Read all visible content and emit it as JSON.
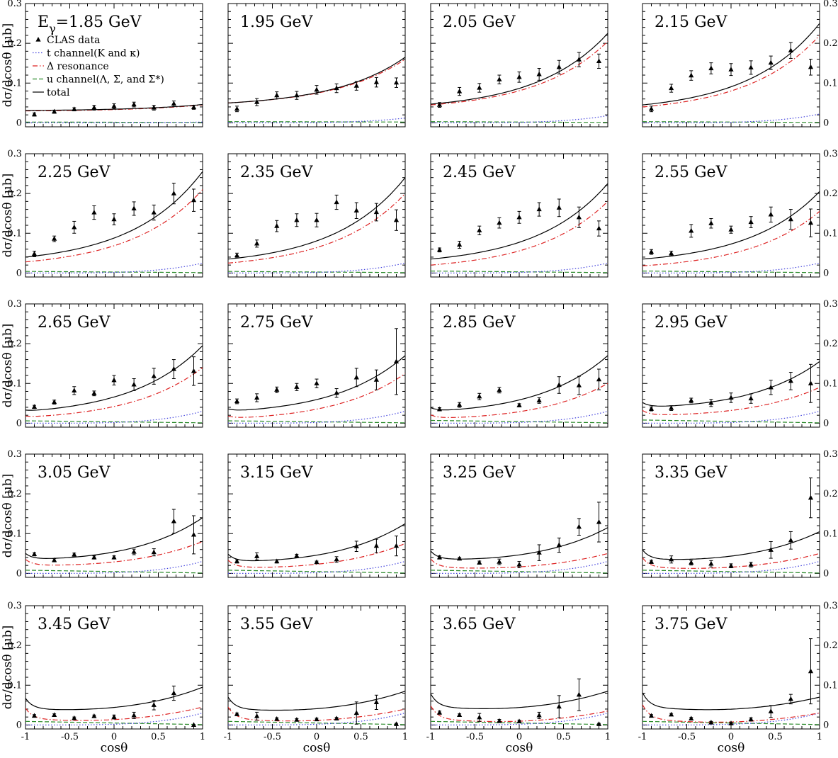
{
  "chart_data": {
    "type": "scatter",
    "grid": false,
    "xlabel": "cosθ",
    "ylabel": "dσ/dcosθ [μb]",
    "xlim": [
      -1,
      1
    ],
    "ylim": [
      -0.01,
      0.3
    ],
    "x_ticks": [
      "-1",
      "-0.5",
      "0",
      "0.5",
      "1"
    ],
    "y_ticks": [
      "0",
      "0.1",
      "0.2",
      "0.3"
    ],
    "legend": {
      "placement": "top-left panel",
      "entries": [
        {
          "key": "data",
          "label": "CLAS data",
          "marker": "triangle",
          "color": "#000000"
        },
        {
          "key": "t_channel",
          "label": "t channel(K and κ)",
          "style": "dotted",
          "color": "#4444dd"
        },
        {
          "key": "delta",
          "label": "Δ resonance",
          "style": "dash-dot",
          "color": "#dd2222"
        },
        {
          "key": "u_channel",
          "label": "u channel(Λ, Σ, and Σ*)",
          "style": "dashed",
          "color": "#2a8a2a"
        },
        {
          "key": "total",
          "label": "total",
          "style": "solid",
          "color": "#000000"
        }
      ]
    },
    "data_x": [
      -0.9,
      -0.675,
      -0.45,
      -0.225,
      0.0,
      0.225,
      0.45,
      0.675,
      0.9
    ],
    "panels": [
      {
        "label_prefix": "E",
        "label_sub": "γ",
        "label": "=1.85 GeV",
        "data_y": [
          0.021,
          0.028,
          0.034,
          0.038,
          0.042,
          0.046,
          0.038,
          0.048,
          0.039
        ],
        "data_err": [
          0.004,
          0.004,
          0.004,
          0.006,
          0.006,
          0.006,
          0.006,
          0.007,
          0.005
        ],
        "curves": {
          "total": [
            0.031,
            0.046
          ],
          "delta": [
            0.03,
            0.045
          ],
          "t": [
            0.0,
            0.002
          ],
          "u": [
            0.002,
            0.001
          ]
        }
      },
      {
        "label": "1.95 GeV",
        "data_y": [
          0.035,
          0.052,
          0.069,
          0.069,
          0.083,
          0.087,
          0.093,
          0.102,
          0.101
        ],
        "data_err": [
          0.007,
          0.009,
          0.009,
          0.01,
          0.011,
          0.011,
          0.011,
          0.012,
          0.012
        ],
        "curves": {
          "total": [
            0.05,
            0.165
          ],
          "delta": [
            0.05,
            0.16
          ],
          "t": [
            0.0,
            0.012
          ],
          "u": [
            0.003,
            0.002
          ]
        }
      },
      {
        "label": "2.05 GeV",
        "data_y": [
          0.045,
          0.079,
          0.088,
          0.109,
          0.115,
          0.122,
          0.14,
          0.159,
          0.155
        ],
        "data_err": [
          0.006,
          0.01,
          0.011,
          0.011,
          0.013,
          0.015,
          0.017,
          0.018,
          0.018
        ],
        "curves": {
          "total": [
            0.047,
            0.225
          ],
          "delta": [
            0.045,
            0.205
          ],
          "t": [
            0.0,
            0.018
          ],
          "u": [
            0.003,
            0.001
          ]
        }
      },
      {
        "label": "2.15 GeV",
        "data_y": [
          0.035,
          0.087,
          0.119,
          0.137,
          0.134,
          0.139,
          0.151,
          0.182,
          0.14
        ],
        "data_err": [
          0.007,
          0.01,
          0.012,
          0.014,
          0.015,
          0.017,
          0.017,
          0.02,
          0.02
        ],
        "curves": {
          "total": [
            0.045,
            0.25
          ],
          "delta": [
            0.04,
            0.22
          ],
          "t": [
            0.0,
            0.022
          ],
          "u": [
            0.003,
            0.001
          ]
        }
      },
      {
        "label": "2.25 GeV",
        "data_y": [
          0.048,
          0.086,
          0.115,
          0.152,
          0.135,
          0.162,
          0.152,
          0.2,
          0.183
        ],
        "data_err": [
          0.007,
          0.007,
          0.015,
          0.017,
          0.014,
          0.017,
          0.019,
          0.026,
          0.028
        ],
        "curves": {
          "total": [
            0.04,
            0.255
          ],
          "delta": [
            0.028,
            0.21
          ],
          "t": [
            0.0,
            0.025
          ],
          "u": [
            0.004,
            0.001
          ]
        }
      },
      {
        "label": "2.35 GeV",
        "data_y": [
          0.044,
          0.074,
          0.118,
          0.133,
          0.133,
          0.178,
          0.157,
          0.153,
          0.133
        ],
        "data_err": [
          0.006,
          0.009,
          0.014,
          0.016,
          0.017,
          0.018,
          0.02,
          0.022,
          0.026
        ],
        "curves": {
          "total": [
            0.035,
            0.24
          ],
          "delta": [
            0.025,
            0.2
          ],
          "t": [
            0.0,
            0.025
          ],
          "u": [
            0.004,
            0.001
          ]
        }
      },
      {
        "label": "2.45 GeV",
        "data_y": [
          0.058,
          0.071,
          0.107,
          0.126,
          0.14,
          0.16,
          0.164,
          0.14,
          0.112
        ],
        "data_err": [
          0.005,
          0.009,
          0.011,
          0.013,
          0.015,
          0.017,
          0.022,
          0.026,
          0.019
        ],
        "curves": {
          "total": [
            0.035,
            0.225
          ],
          "delta": [
            0.02,
            0.18
          ],
          "t": [
            0.0,
            0.025
          ],
          "u": [
            0.005,
            0.001
          ]
        }
      },
      {
        "label": "2.55 GeV",
        "data_y": [
          0.053,
          0.049,
          0.106,
          0.125,
          0.109,
          0.128,
          0.147,
          0.135,
          0.126
        ],
        "data_err": [
          0.006,
          0.006,
          0.016,
          0.012,
          0.009,
          0.014,
          0.019,
          0.025,
          0.035
        ],
        "curves": {
          "total": [
            0.035,
            0.205
          ],
          "delta": [
            0.018,
            0.155
          ],
          "t": [
            0.0,
            0.025
          ],
          "u": [
            0.005,
            0.001
          ]
        }
      },
      {
        "label": "2.65 GeV",
        "data_y": [
          0.041,
          0.053,
          0.082,
          0.075,
          0.108,
          0.097,
          0.118,
          0.136,
          0.131
        ],
        "data_err": [
          0.004,
          0.005,
          0.01,
          0.006,
          0.012,
          0.015,
          0.02,
          0.024,
          0.036
        ],
        "curves": {
          "total": [
            0.03,
            0.195
          ],
          "delta": [
            0.015,
            0.14
          ],
          "t": [
            0.0,
            0.03
          ],
          "u": [
            0.006,
            0.001
          ]
        }
      },
      {
        "label": "2.75 GeV",
        "data_y": [
          0.055,
          0.064,
          0.084,
          0.091,
          0.1,
          0.076,
          0.115,
          0.109,
          0.155
        ],
        "data_err": [
          0.006,
          0.01,
          0.007,
          0.009,
          0.011,
          0.011,
          0.023,
          0.025,
          0.083
        ],
        "curves": {
          "total": [
            0.03,
            0.17
          ],
          "delta": [
            0.012,
            0.125
          ],
          "t": [
            0.0,
            0.03
          ],
          "u": [
            0.006,
            0.001
          ]
        }
      },
      {
        "label": "2.85 GeV",
        "data_y": [
          0.035,
          0.046,
          0.067,
          0.083,
          0.045,
          0.057,
          0.096,
          0.095,
          0.11
        ],
        "data_err": [
          0.004,
          0.006,
          0.008,
          0.007,
          0.004,
          0.007,
          0.021,
          0.023,
          0.026
        ],
        "curves": {
          "total": [
            0.03,
            0.17
          ],
          "delta": [
            0.012,
            0.1
          ],
          "t": [
            0.0,
            0.03
          ],
          "u": [
            0.007,
            0.001
          ]
        }
      },
      {
        "label": "2.95 GeV",
        "data_y": [
          0.036,
          0.038,
          0.057,
          0.051,
          0.064,
          0.062,
          0.09,
          0.106,
          0.1
        ],
        "data_err": [
          0.005,
          0.006,
          0.006,
          0.009,
          0.012,
          0.012,
          0.018,
          0.022,
          0.048
        ],
        "curves": {
          "total": [
            0.04,
            0.155
          ],
          "delta": [
            0.02,
            0.09
          ],
          "t": [
            0.0,
            0.03
          ],
          "u": [
            0.008,
            0.001
          ]
        }
      },
      {
        "label": "3.05 GeV",
        "data_y": [
          0.048,
          0.033,
          0.047,
          0.04,
          0.04,
          0.054,
          0.053,
          0.131,
          0.097
        ],
        "data_err": [
          0.004,
          0.004,
          0.004,
          0.004,
          0.004,
          0.007,
          0.009,
          0.03,
          0.048
        ],
        "curves": {
          "total": [
            0.035,
            0.14
          ],
          "delta": [
            0.02,
            0.08
          ],
          "t": [
            0.0,
            0.03
          ],
          "u": [
            0.008,
            0.001
          ]
        }
      },
      {
        "label": "3.15 GeV",
        "data_y": [
          0.03,
          0.043,
          0.03,
          0.044,
          0.028,
          0.035,
          0.068,
          0.069,
          0.069
        ],
        "data_err": [
          0.004,
          0.009,
          0.004,
          0.004,
          0.003,
          0.007,
          0.013,
          0.017,
          0.025
        ],
        "curves": {
          "total": [
            0.03,
            0.125
          ],
          "delta": [
            0.015,
            0.075
          ],
          "t": [
            0.0,
            0.03
          ],
          "u": [
            0.008,
            0.001
          ]
        }
      },
      {
        "label": "3.25 GeV",
        "data_y": [
          0.04,
          0.037,
          0.027,
          0.029,
          0.022,
          0.052,
          0.071,
          0.117,
          0.129
        ],
        "data_err": [
          0.004,
          0.003,
          0.004,
          0.007,
          0.008,
          0.02,
          0.018,
          0.021,
          0.05
        ],
        "curves": {
          "total": [
            0.035,
            0.115
          ],
          "delta": [
            0.015,
            0.05
          ],
          "t": [
            0.0,
            0.03
          ],
          "u": [
            0.008,
            0.001
          ]
        }
      },
      {
        "label": "3.35 GeV",
        "data_y": [
          0.029,
          0.035,
          0.027,
          0.024,
          0.019,
          0.022,
          0.059,
          0.083,
          0.19
        ],
        "data_err": [
          0.004,
          0.009,
          0.006,
          0.008,
          0.005,
          0.006,
          0.021,
          0.022,
          0.05
        ],
        "curves": {
          "total": [
            0.035,
            0.105
          ],
          "delta": [
            0.015,
            0.05
          ],
          "t": [
            0.0,
            0.03
          ],
          "u": [
            0.008,
            0.001
          ]
        }
      },
      {
        "label": "3.45 GeV",
        "data_y": [
          0.023,
          0.025,
          0.017,
          0.022,
          0.02,
          0.024,
          0.05,
          0.08,
          0.0
        ],
        "data_err": [
          0.003,
          0.003,
          0.003,
          0.003,
          0.005,
          0.008,
          0.012,
          0.018,
          0.0
        ],
        "curves": {
          "total": [
            0.04,
            0.095
          ],
          "delta": [
            0.015,
            0.045
          ],
          "t": [
            0.0,
            0.03
          ],
          "u": [
            0.009,
            0.001
          ]
        }
      },
      {
        "label": "3.55 GeV",
        "data_y": [
          0.027,
          0.022,
          0.015,
          0.013,
          0.014,
          0.016,
          0.03,
          0.057,
          0.002
        ],
        "data_err": [
          0.003,
          0.01,
          0.003,
          0.003,
          0.003,
          0.003,
          0.028,
          0.018,
          0.002
        ],
        "curves": {
          "total": [
            0.04,
            0.085
          ],
          "delta": [
            0.015,
            0.04
          ],
          "t": [
            0.0,
            0.03
          ],
          "u": [
            0.009,
            0.001
          ]
        }
      },
      {
        "label": "3.65 GeV",
        "data_y": [
          0.031,
          0.025,
          0.019,
          0.01,
          0.009,
          0.024,
          0.046,
          0.076,
          0.002
        ],
        "data_err": [
          0.004,
          0.003,
          0.01,
          0.004,
          0.003,
          0.008,
          0.028,
          0.04,
          0.002
        ],
        "curves": {
          "total": [
            0.045,
            0.085
          ],
          "delta": [
            0.015,
            0.035
          ],
          "t": [
            0.0,
            0.03
          ],
          "u": [
            0.009,
            0.001
          ]
        }
      },
      {
        "label": "3.75 GeV",
        "data_y": [
          0.023,
          0.026,
          0.016,
          0.006,
          0.004,
          0.014,
          0.034,
          0.065,
          0.135
        ],
        "data_err": [
          0.003,
          0.003,
          0.003,
          0.003,
          0.002,
          0.004,
          0.015,
          0.012,
          0.082
        ],
        "curves": {
          "total": [
            0.045,
            0.07
          ],
          "delta": [
            0.015,
            0.03
          ],
          "t": [
            0.0,
            0.03
          ],
          "u": [
            0.009,
            0.001
          ]
        }
      }
    ]
  }
}
